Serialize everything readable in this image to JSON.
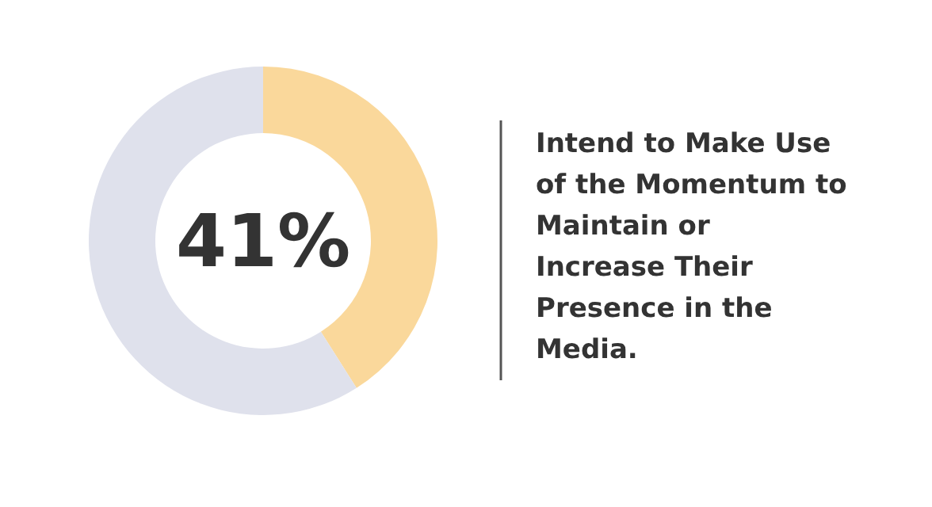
{
  "chart_data": {
    "type": "donut",
    "title": "Intend to Make Use of the Momentum to Maintain or Increase Their Presence in the Media.",
    "categories": [
      null,
      null
    ],
    "values": [
      41,
      59
    ],
    "colors": [
      "#fad89b",
      "#dfe1ec"
    ],
    "value_labels": [
      "41%",
      null
    ]
  }
}
